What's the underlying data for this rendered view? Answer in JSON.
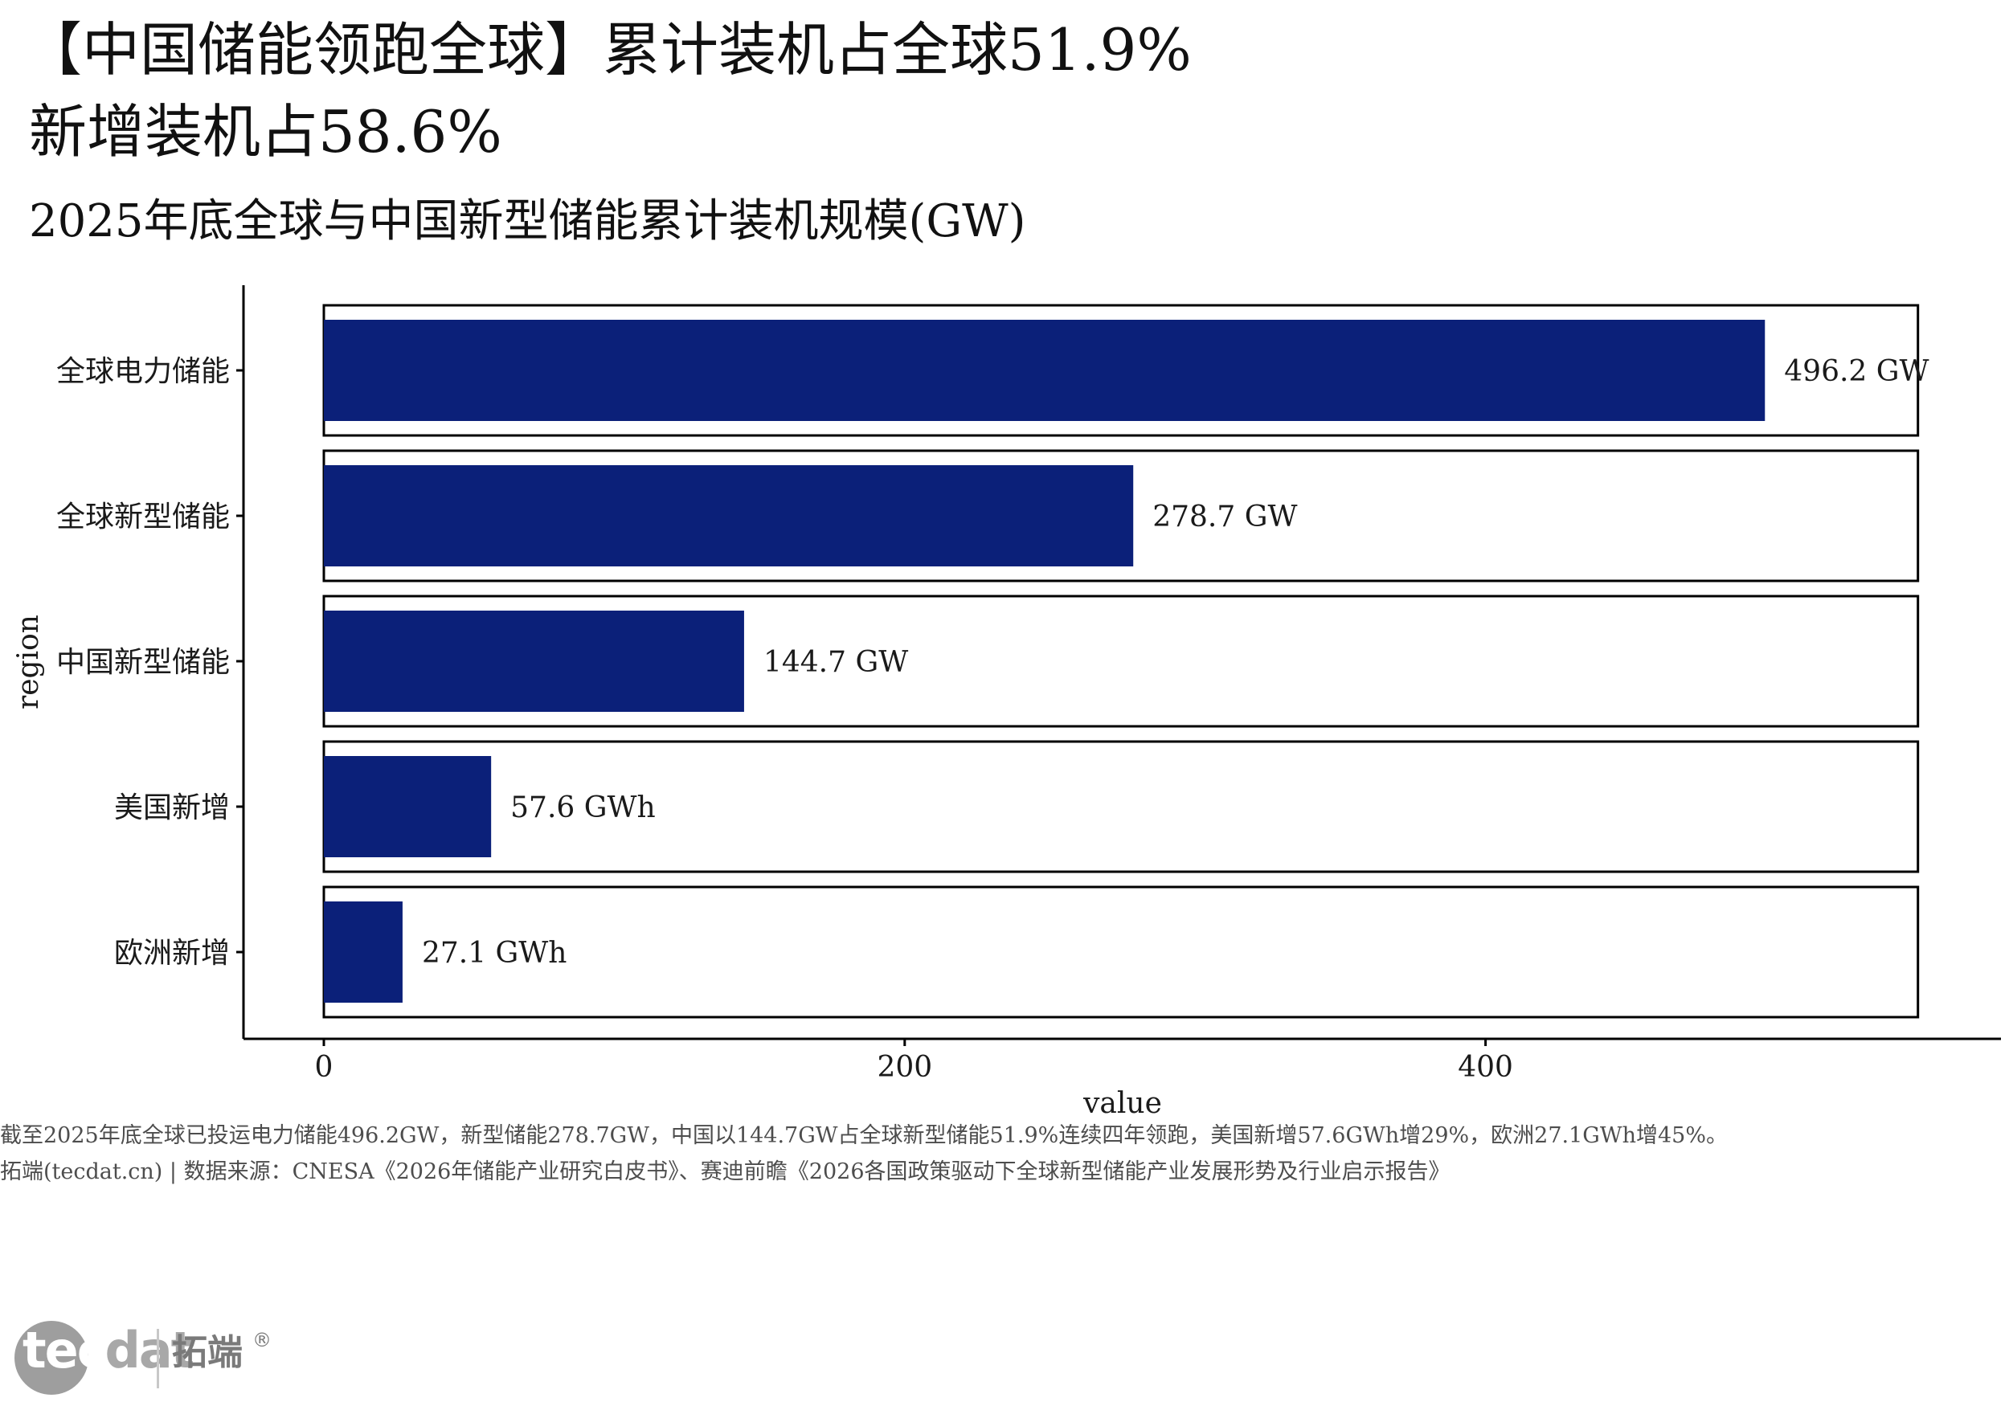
{
  "title": {
    "line1": "【中国储能领跑全球】累计装机占全球51.9%",
    "line2": "新增装机占58.6%"
  },
  "subtitle": "2025年底全球与中国新型储能累计装机规模(GW)",
  "chart_data": {
    "type": "bar",
    "orientation": "horizontal",
    "categories": [
      "全球电力储能",
      "全球新型储能",
      "中国新型储能",
      "美国新增",
      "欧洲新增"
    ],
    "values": [
      496.2,
      278.7,
      144.7,
      57.6,
      27.1
    ],
    "data_labels": [
      "496.2 GW",
      "278.7 GW",
      "144.7 GW",
      "57.6 GWh",
      "27.1 GWh"
    ],
    "xlabel": "value",
    "ylabel": "region",
    "x_ticks": [
      0,
      200,
      400
    ],
    "xlim": [
      0,
      550
    ],
    "bar_color": "#0b2079",
    "panel_border_color": "#000000",
    "grid": false,
    "legend": "none"
  },
  "notes": {
    "line1": "截至2025年底全球已投运电力储能496.2GW，新型储能278.7GW，中国以144.7GW占全球新型储能51.9%连续四年领跑，美国新增57.6GWh增29%，欧洲27.1GWh增45%。",
    "line2": "拓端(tecdat.cn) | 数据来源：CNESA《2026年储能产业研究白皮书》、赛迪前瞻《2026各国政策驱动下全球新型储能产业发展形势及行业启示报告》"
  },
  "logo": {
    "word_part1": "tec",
    "word_part2": "dat",
    "cn": "拓端",
    "reg": "®"
  }
}
